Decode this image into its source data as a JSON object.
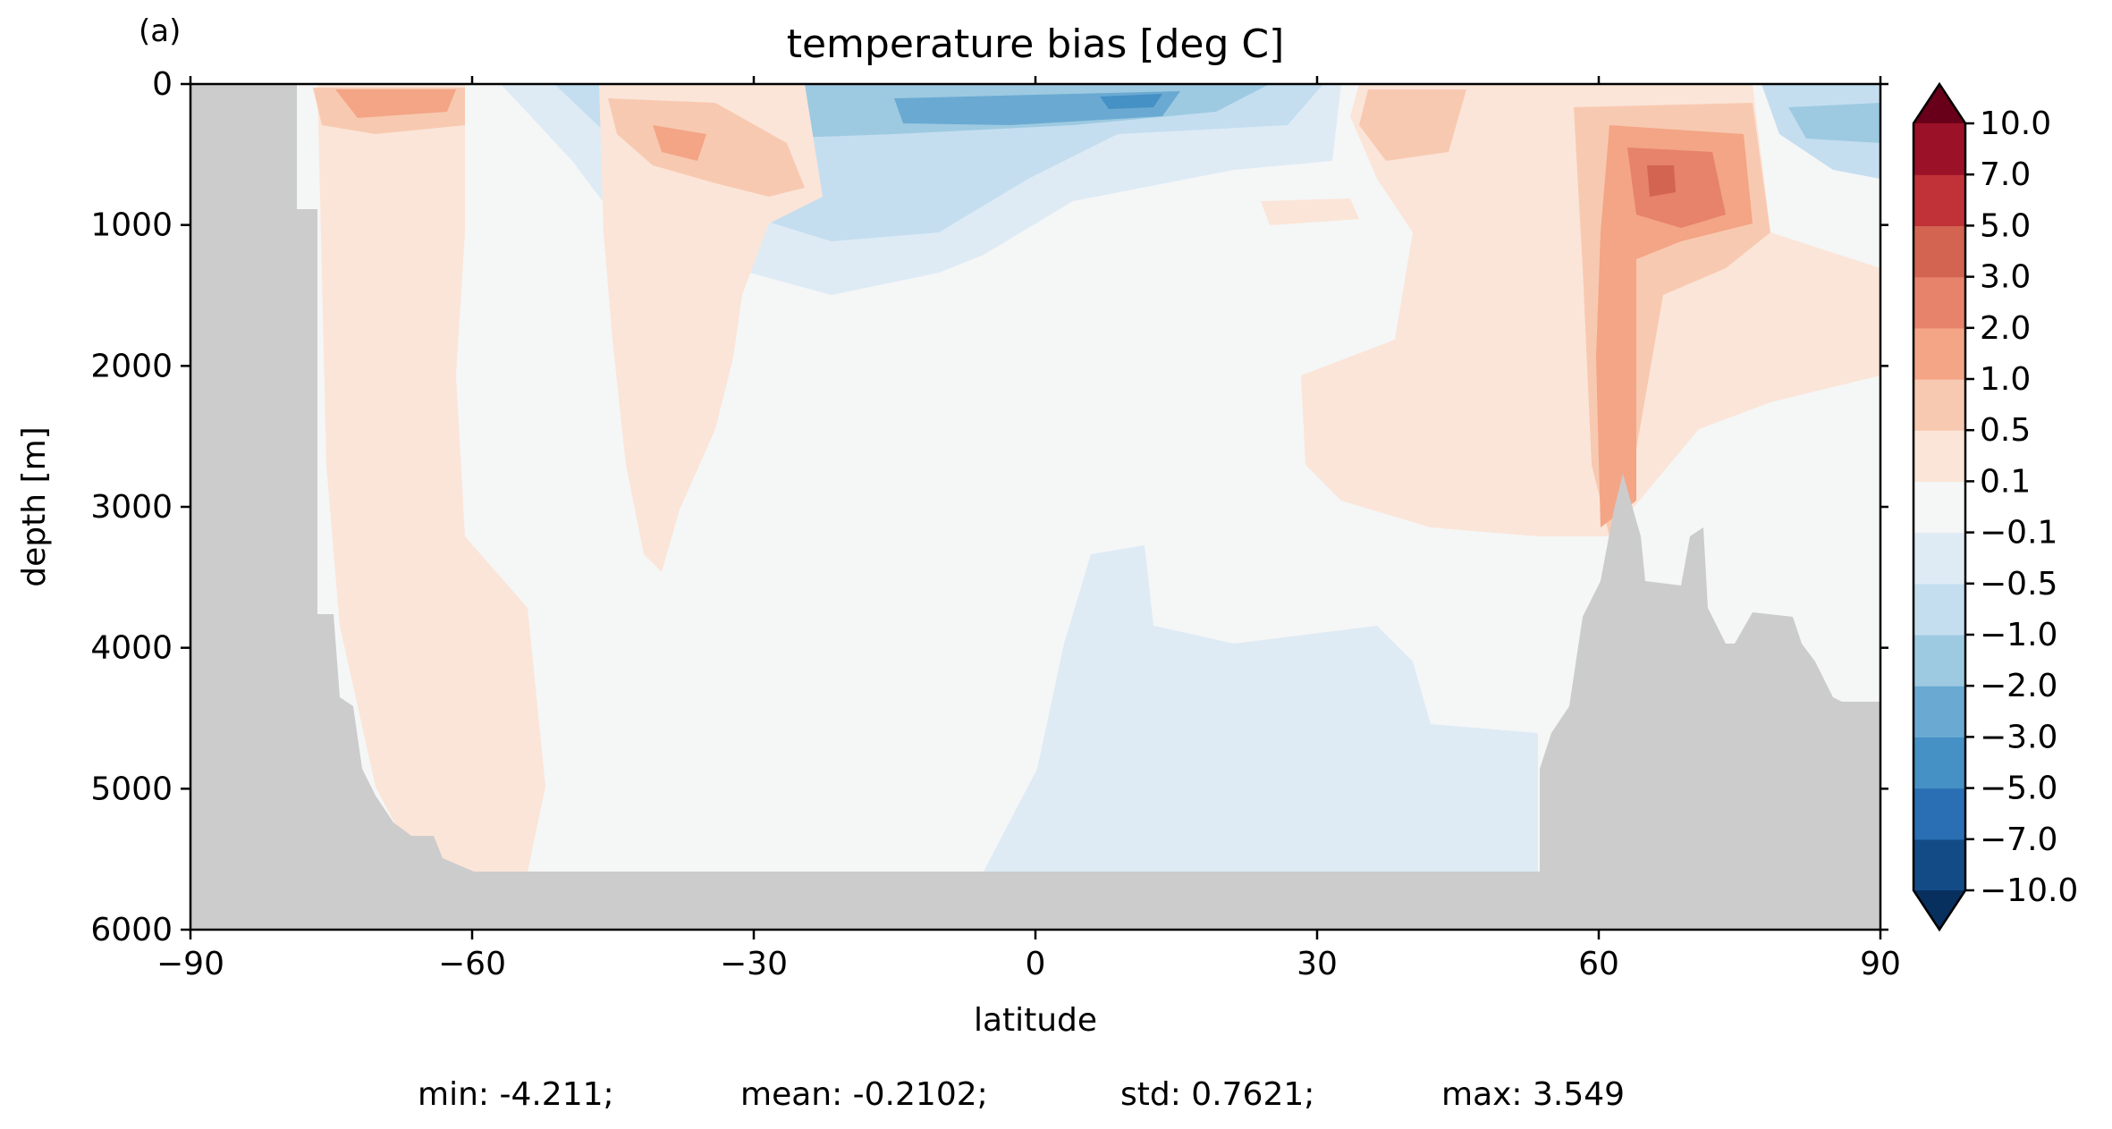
{
  "panel_label": "(a)",
  "chart_data": {
    "type": "heatmap",
    "title": "temperature bias [deg C]",
    "xlabel": "latitude",
    "ylabel": "depth [m]",
    "xlim": [
      -90,
      90
    ],
    "ylim": [
      6000,
      0
    ],
    "xticks": [
      -90,
      -60,
      -30,
      0,
      30,
      60,
      90
    ],
    "yticks": [
      0,
      1000,
      2000,
      3000,
      4000,
      5000,
      6000
    ],
    "colorbar": {
      "levels": [
        -10.0,
        -7.0,
        -5.0,
        -3.0,
        -2.0,
        -1.0,
        -0.5,
        -0.1,
        0.1,
        0.5,
        1.0,
        2.0,
        3.0,
        5.0,
        7.0,
        10.0
      ],
      "tick_labels": [
        "−10.0",
        "−7.0",
        "−5.0",
        "−3.0",
        "−2.0",
        "−1.0",
        "−0.5",
        "−0.1",
        "0.1",
        "0.5",
        "1.0",
        "2.0",
        "3.0",
        "5.0",
        "7.0",
        "10.0"
      ],
      "colors": [
        "#134b87",
        "#2a6fb3",
        "#4590c4",
        "#6aaad2",
        "#9dcae1",
        "#c4def0",
        "#deebf5",
        "#f5f6f6",
        "#fbe5d8",
        "#f8c9b1",
        "#f3a585",
        "#e6836a",
        "#d26451",
        "#c03238",
        "#9b1127"
      ],
      "under_color": "#08305e",
      "over_color": "#690019",
      "extend": "both"
    },
    "land_color": "#cccccc",
    "stats": [
      {
        "label": "min: -4.211;"
      },
      {
        "label": "mean: -0.2102;"
      },
      {
        "label": "std: 0.7621;"
      },
      {
        "label": "max: 3.549"
      }
    ]
  }
}
